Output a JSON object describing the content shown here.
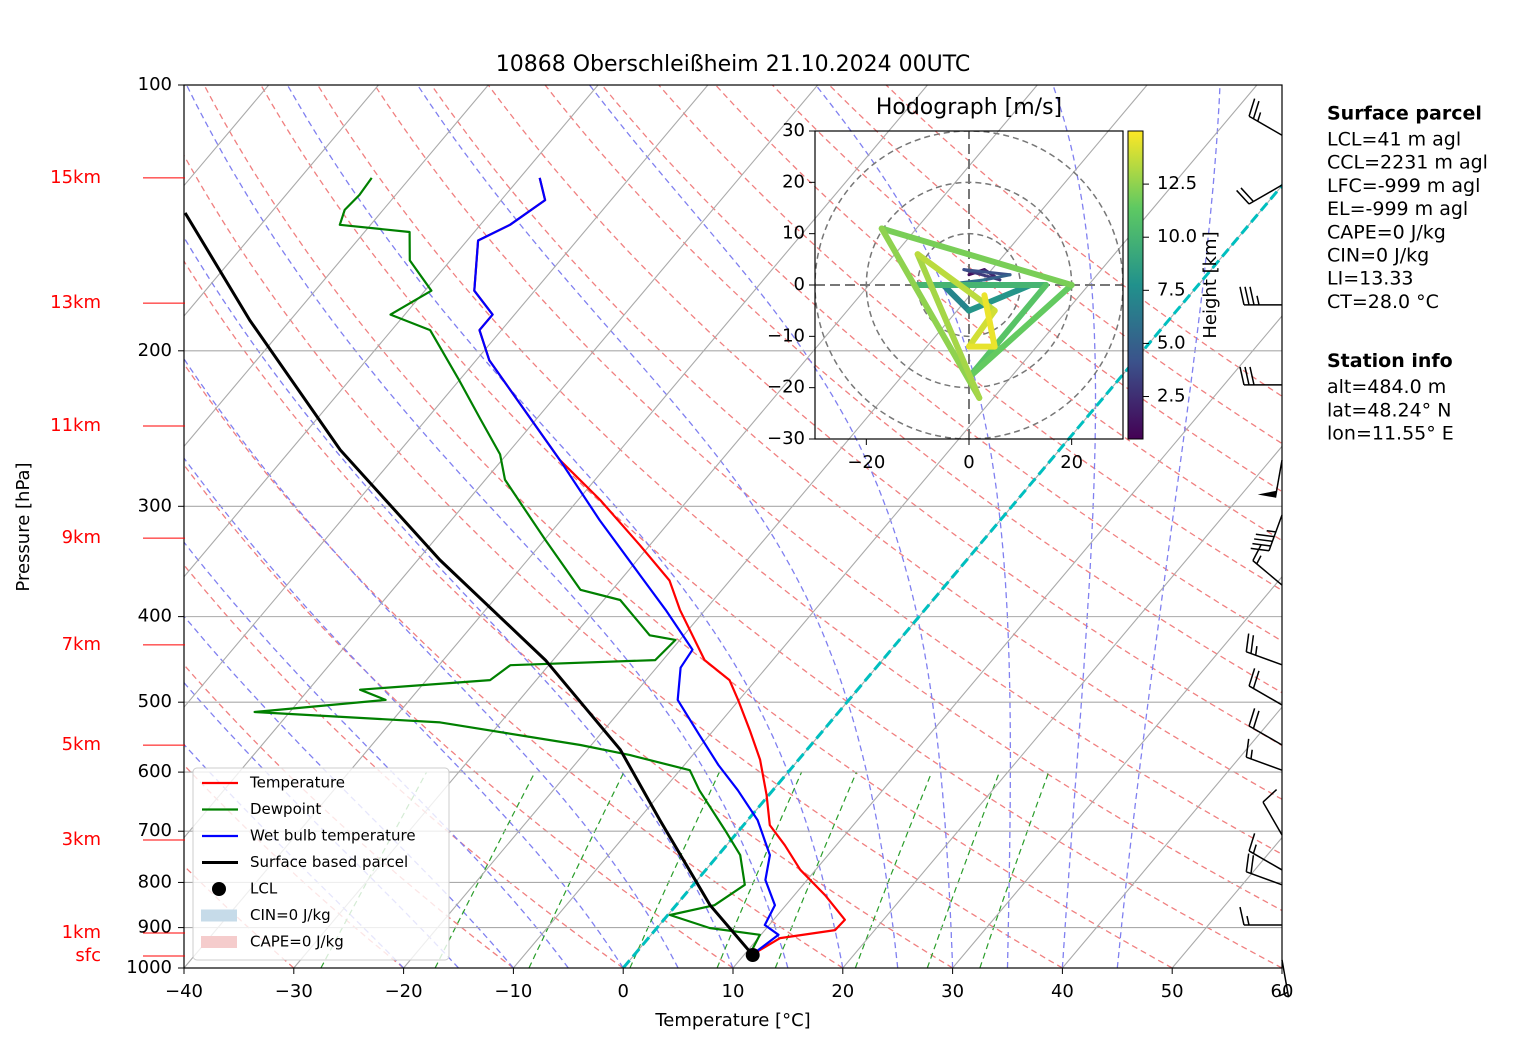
{
  "chart_data": {
    "type": "skewt",
    "title": "10868 Oberschleißheim 21.10.2024 00UTC",
    "xlabel": "Temperature [°C]",
    "ylabel": "Pressure [hPa]",
    "xlim": [
      -40,
      60
    ],
    "ylim": [
      1000,
      100
    ],
    "log_y": true,
    "grid": true,
    "legend": "lower left",
    "xticks": [
      {
        "value": -40,
        "label": "−40"
      },
      {
        "value": -30,
        "label": "−30"
      },
      {
        "value": -20,
        "label": "−20"
      },
      {
        "value": -10,
        "label": "−10"
      },
      0,
      10,
      20,
      30,
      40,
      50,
      60
    ],
    "yticks": [
      100,
      200,
      300,
      400,
      500,
      600,
      700,
      800,
      900,
      1000
    ],
    "series": [
      {
        "name": "Temperature",
        "color": "#ff0000",
        "pressure": [
          966.7,
          925,
          906,
          882,
          827,
          774,
          726,
          689,
          637,
          581,
          538,
          497,
          472,
          448,
          393,
          364,
          332,
          295,
          266,
          239,
          205,
          189.5,
          182,
          171,
          150,
          144,
          135,
          127.4
        ],
        "temperature": [
          10.7,
          12.0,
          16.4,
          16.5,
          12.8,
          8.6,
          5.3,
          2.4,
          -0.2,
          -3.5,
          -6.7,
          -10.1,
          -12.4,
          -16.2,
          -22.3,
          -25.5,
          -30.9,
          -38,
          -44.7,
          -50.5,
          -58.8,
          -62,
          -62,
          -65.5,
          -69,
          -67.3,
          -66,
          -68.2
        ]
      },
      {
        "name": "Dewpoint",
        "color": "#008000",
        "pressure": [
          966.7,
          917,
          901,
          871,
          849,
          805,
          745,
          698,
          629,
          597,
          574,
          559,
          527,
          513,
          497,
          484,
          472,
          454,
          448,
          425,
          420,
          383,
          373,
          327,
          280,
          262,
          239,
          216,
          189.5,
          182,
          171,
          158,
          146.7,
          144,
          138.5,
          133.2,
          127.4
        ],
        "temperature": [
          10.5,
          9.9,
          4.8,
          0.2,
          3.5,
          4.7,
          2,
          -1.3,
          -6.7,
          -9.1,
          -15.7,
          -21,
          -35.5,
          -53.2,
          -42.2,
          -45.3,
          -34.2,
          -33.5,
          -20.7,
          -20.4,
          -23.1,
          -28.5,
          -32.9,
          -40,
          -48.2,
          -50.6,
          -55.1,
          -60,
          -66.5,
          -71.3,
          -69.4,
          -73.7,
          -75.9,
          -82.8,
          -83.5,
          -83.3,
          -83.5
        ]
      },
      {
        "name": "Wet bulb temperature",
        "color": "#0000ff",
        "pressure": [
          966.7,
          917,
          894,
          849,
          795,
          745,
          680,
          629,
          589,
          545,
          497,
          457,
          436,
          393,
          359,
          311,
          266,
          239,
          205,
          189.5,
          182,
          171,
          150,
          144,
          135,
          127.4
        ],
        "temperature": [
          10.7,
          11.6,
          9.6,
          9,
          6.2,
          4.7,
          0.9,
          -3.2,
          -6.9,
          -10.9,
          -15.6,
          -17.8,
          -18.1,
          -23.6,
          -28.6,
          -36.5,
          -44.7,
          -50.5,
          -58.8,
          -62,
          -62,
          -65.5,
          -69,
          -67.3,
          -66,
          -68.2
        ]
      },
      {
        "name": "Surface based parcel",
        "color": "#000000",
        "pressure": [
          966.7,
          849,
          680,
          566,
          448,
          345,
          259,
          184.6,
          139.6
        ],
        "temperature": [
          10.8,
          3.1,
          -8,
          -17,
          -30.7,
          -48,
          -65.5,
          -83.7,
          -97.8
        ]
      }
    ],
    "lcl": {
      "name": "LCL",
      "pressure": 966.7,
      "temperature": 10.8,
      "color": "#000000"
    },
    "shading": [
      {
        "name": "CIN=0 J/kg",
        "color": "#c6dbe9"
      },
      {
        "name": "CAPE=0 J/kg",
        "color": "#f5cccc"
      }
    ],
    "freezing_isotherm": 0,
    "freezing_color": "#00bfbf",
    "height_labels": {
      "color": "#ff0000",
      "labels": [
        "15km",
        "13km",
        "11km",
        "9km",
        "7km",
        "5km",
        "3km",
        "1km",
        "sfc"
      ],
      "pressure": [
        127.4,
        176.6,
        243.3,
        326,
        430.6,
        559.2,
        716.2,
        912.7,
        969.2
      ]
    },
    "wind_barbs": {
      "pressure": [
        114,
        129.8,
        177.4,
        218.6,
        266,
        306.9,
        368.4,
        453.6,
        503.6,
        559,
        597,
        706.9,
        774.4,
        805,
        894,
        979
      ],
      "speed": [
        25,
        20,
        35,
        30,
        50,
        45,
        15,
        25,
        20,
        20,
        15,
        10,
        15,
        20,
        15,
        5
      ],
      "direction": [
        300,
        240,
        270,
        270,
        190,
        200,
        310,
        290,
        300,
        300,
        290,
        330,
        300,
        290,
        270,
        170
      ]
    },
    "hodograph": {
      "title": "Hodograph [m/s]",
      "xlim": [
        -30,
        30
      ],
      "ylim": [
        -30,
        30
      ],
      "xticks": [
        {
          "value": -20,
          "label": "−20"
        },
        0,
        20
      ],
      "yticks": [
        {
          "value": -30,
          "label": "−30"
        },
        {
          "value": -20,
          "label": "−20"
        },
        {
          "value": -10,
          "label": "−10"
        },
        0,
        10,
        20,
        30
      ],
      "rings": [
        10,
        20,
        30
      ],
      "colorbar_label": "Height [km]",
      "colorbar_lim": [
        0.5,
        15
      ],
      "colorbar_ticks": [
        2.5,
        {
          "value": 5,
          "label": "5.0"
        },
        7.5,
        {
          "value": 10,
          "label": "10.0"
        },
        12.5
      ],
      "height": [
        0.5,
        1,
        2,
        3,
        4,
        5,
        6,
        7,
        8,
        9,
        10,
        11,
        11.5,
        12,
        12.5,
        13,
        13.5,
        14,
        14.5,
        14.6
      ],
      "u": [
        0,
        3,
        6,
        -1,
        8,
        3,
        -5,
        0,
        12,
        -10,
        15,
        0,
        20,
        -17,
        2,
        -10,
        5,
        0,
        5,
        3
      ],
      "v": [
        2,
        3,
        1,
        3,
        2,
        1,
        0,
        -5,
        0,
        0,
        0,
        -18,
        0,
        11,
        -22,
        6,
        -5,
        -12,
        -12,
        -2
      ]
    }
  },
  "info_panels": [
    {
      "title": "Surface parcel",
      "lines": [
        "LCL=41 m agl",
        "CCL=2231 m agl",
        "LFC=-999 m agl",
        "EL=-999 m agl",
        "CAPE=0 J/kg",
        "CIN=0 J/kg",
        "LI=13.33",
        "CT=28.0 °C"
      ]
    },
    {
      "title": "Station info",
      "lines": [
        "alt=484.0 m",
        "lat=48.24° N",
        "lon=11.55° E"
      ]
    }
  ]
}
